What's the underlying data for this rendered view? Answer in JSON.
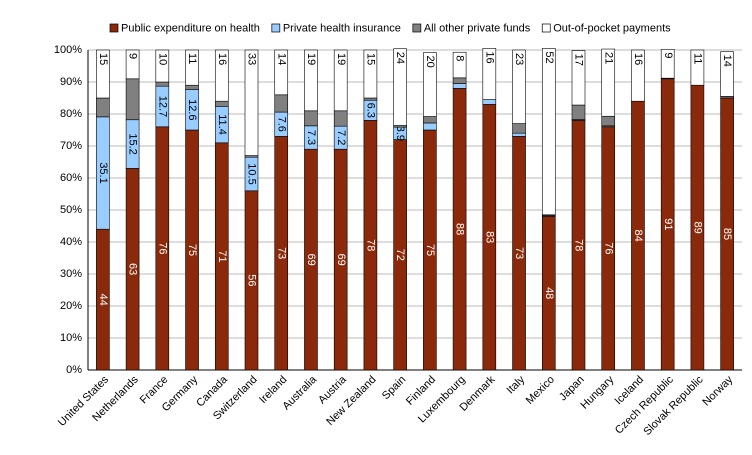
{
  "chart_data": {
    "type": "stacked_bar",
    "categories": [
      "United States",
      "Netherlands",
      "France",
      "Germany",
      "Canada",
      "Switzerland",
      "Ireland",
      "Australia",
      "Austria",
      "New Zealand",
      "Spain",
      "Finland",
      "Luxembourg",
      "Denmark",
      "Italy",
      "Mexico",
      "Japan",
      "Hungary",
      "Iceland",
      "Czech Republic",
      "Slovak Republic",
      "Norway"
    ],
    "series": [
      {
        "name": "Public expenditure on health",
        "color": "#8b2a0b",
        "values": [
          44,
          63,
          76,
          75,
          71,
          56,
          73,
          69,
          69,
          78,
          72,
          75,
          88,
          83,
          73,
          48,
          78,
          76,
          84,
          91,
          89,
          85
        ]
      },
      {
        "name": "Private health insurance",
        "color": "#99ccff",
        "values": [
          35.1,
          15.2,
          12.7,
          12.6,
          11.4,
          10.5,
          7.6,
          7.3,
          7.2,
          6.3,
          3.9,
          2.2,
          1.5,
          1.5,
          1,
          0.3,
          0.3,
          0.3,
          0,
          0,
          0,
          0
        ],
        "value_labels": [
          "35.1",
          "15.2",
          "12.7",
          "12.6",
          "11.4",
          "10.5",
          "7.6",
          "7.3",
          "7.2",
          "6.3",
          "3.9",
          null,
          null,
          null,
          null,
          null,
          null,
          null,
          null,
          null,
          null,
          null
        ]
      },
      {
        "name": "All other private funds",
        "color": "#808080",
        "values": [
          5.9,
          12.8,
          1.3,
          1.4,
          1.6,
          0.5,
          5.4,
          4.7,
          4.8,
          0.7,
          0.5,
          2,
          1.8,
          0,
          3,
          0.2,
          4.5,
          3,
          0,
          0.2,
          0,
          0.5
        ]
      },
      {
        "name": "Out-of-pocket payments",
        "color": "#ffffff",
        "values": [
          15,
          9,
          10,
          11,
          16,
          33,
          14,
          19,
          19,
          15,
          24,
          20,
          8,
          16,
          23,
          52,
          17,
          21,
          16,
          9,
          11,
          14
        ]
      }
    ],
    "ylim": [
      0,
      100
    ],
    "yticks": [
      {
        "value": 0,
        "label": "0%"
      },
      {
        "value": 10,
        "label": "10%"
      },
      {
        "value": 20,
        "label": "20%"
      },
      {
        "value": 30,
        "label": "30%"
      },
      {
        "value": 40,
        "label": "40%"
      },
      {
        "value": 50,
        "label": "50%"
      },
      {
        "value": 60,
        "label": "60%"
      },
      {
        "value": 70,
        "label": "70%"
      },
      {
        "value": 80,
        "label": "80%"
      },
      {
        "value": 90,
        "label": "90%"
      },
      {
        "value": 100,
        "label": "100%"
      }
    ],
    "grid": true,
    "legend": "top"
  }
}
